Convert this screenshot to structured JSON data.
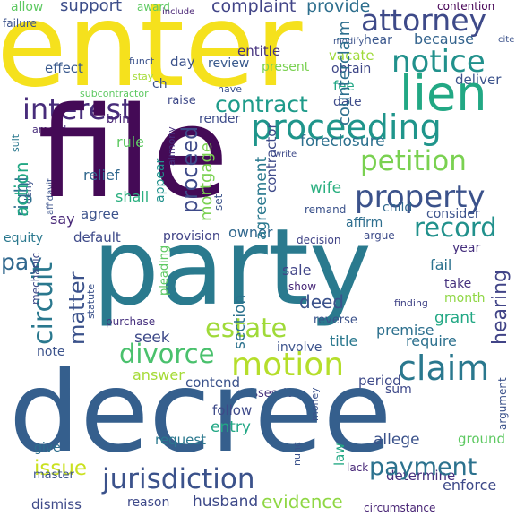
{
  "words": [
    {
      "text": "enter",
      "color": "#f5e11d",
      "vertical": false
    },
    {
      "text": "file",
      "color": "#440a56",
      "vertical": false
    },
    {
      "text": "party",
      "color": "#2a7a8e",
      "vertical": false
    },
    {
      "text": "decree",
      "color": "#355f8d",
      "vertical": false
    },
    {
      "text": "jurisdiction",
      "color": "#3b528b",
      "vertical": false
    },
    {
      "text": "proceeding",
      "color": "#1f958b",
      "vertical": false
    },
    {
      "text": "property",
      "color": "#3b528b",
      "vertical": false
    },
    {
      "text": "attorney",
      "color": "#3e4a89",
      "vertical": false
    },
    {
      "text": "notice",
      "color": "#21918c",
      "vertical": false
    },
    {
      "text": "lien",
      "color": "#22a884",
      "vertical": false
    },
    {
      "text": "interest",
      "color": "#472c7a",
      "vertical": false
    },
    {
      "text": "contract",
      "color": "#1e9b8a",
      "vertical": false
    },
    {
      "text": "petition",
      "color": "#7ad151",
      "vertical": false
    },
    {
      "text": "record",
      "color": "#21918c",
      "vertical": false
    },
    {
      "text": "motion",
      "color": "#b5de2b",
      "vertical": false
    },
    {
      "text": "claim",
      "color": "#2a788e",
      "vertical": false
    },
    {
      "text": "divorce",
      "color": "#4ac16d",
      "vertical": false
    },
    {
      "text": "estate",
      "color": "#a0da39",
      "vertical": false
    },
    {
      "text": "payment",
      "color": "#2c728e",
      "vertical": false
    },
    {
      "text": "evidence",
      "color": "#8fd744",
      "vertical": false
    },
    {
      "text": "issue",
      "color": "#cae11f",
      "vertical": false
    },
    {
      "text": "pay",
      "color": "#31688e",
      "vertical": false
    },
    {
      "text": "complaint",
      "color": "#414487",
      "vertical": false
    },
    {
      "text": "provide",
      "color": "#2e6f8e",
      "vertical": false
    },
    {
      "text": "support",
      "color": "#3d4e8a",
      "vertical": false
    },
    {
      "text": "allow",
      "color": "#5ec962",
      "vertical": false
    },
    {
      "text": "award",
      "color": "#5ec962",
      "vertical": false
    },
    {
      "text": "include",
      "color": "#482475",
      "vertical": false
    },
    {
      "text": "contention",
      "color": "#440154",
      "vertical": false
    },
    {
      "text": "because",
      "color": "#33638d",
      "vertical": false
    },
    {
      "text": "vacate",
      "color": "#9fda3a",
      "vertical": false
    },
    {
      "text": "obtain",
      "color": "#3f4788",
      "vertical": false
    },
    {
      "text": "deliver",
      "color": "#3b528b",
      "vertical": false
    },
    {
      "text": "effect",
      "color": "#38588c",
      "vertical": false
    },
    {
      "text": "day",
      "color": "#3b528b",
      "vertical": false
    },
    {
      "text": "fee",
      "color": "#22a785",
      "vertical": false
    },
    {
      "text": "date",
      "color": "#3e4c8a",
      "vertical": false
    },
    {
      "text": "entitle",
      "color": "#46337f",
      "vertical": false
    },
    {
      "text": "present",
      "color": "#7ad151",
      "vertical": false
    },
    {
      "text": "hear",
      "color": "#39568c",
      "vertical": false
    },
    {
      "text": "review",
      "color": "#38598c",
      "vertical": false
    },
    {
      "text": "render",
      "color": "#3e4c8a",
      "vertical": false
    },
    {
      "text": "bring",
      "color": "#482475",
      "vertical": false
    },
    {
      "text": "raise",
      "color": "#3e4989",
      "vertical": false
    },
    {
      "text": "subcontractor",
      "color": "#5ec962",
      "vertical": false
    },
    {
      "text": "foreclosure",
      "color": "#2d708e",
      "vertical": false
    },
    {
      "text": "relief",
      "color": "#31688e",
      "vertical": false
    },
    {
      "text": "rule",
      "color": "#5ec962",
      "vertical": false
    },
    {
      "text": "shall",
      "color": "#29af7f",
      "vertical": false
    },
    {
      "text": "child",
      "color": "#31688e",
      "vertical": false
    },
    {
      "text": "wife",
      "color": "#29af7f",
      "vertical": false
    },
    {
      "text": "remand",
      "color": "#3b528b",
      "vertical": false
    },
    {
      "text": "affirm",
      "color": "#2e6e8e",
      "vertical": false
    },
    {
      "text": "consider",
      "color": "#3b528b",
      "vertical": false
    },
    {
      "text": "argue",
      "color": "#3e4c8a",
      "vertical": false
    },
    {
      "text": "default",
      "color": "#3e4a89",
      "vertical": false
    },
    {
      "text": "provision",
      "color": "#414487",
      "vertical": false
    },
    {
      "text": "owner",
      "color": "#31688e",
      "vertical": false
    },
    {
      "text": "decision",
      "color": "#414487",
      "vertical": false
    },
    {
      "text": "agree",
      "color": "#3b528b",
      "vertical": false
    },
    {
      "text": "say",
      "color": "#482878",
      "vertical": false
    },
    {
      "text": "equity",
      "color": "#2a788e",
      "vertical": false
    },
    {
      "text": "year",
      "color": "#46307e",
      "vertical": false
    },
    {
      "text": "fail",
      "color": "#2c728e",
      "vertical": false
    },
    {
      "text": "take",
      "color": "#46327e",
      "vertical": false
    },
    {
      "text": "month",
      "color": "#8fd744",
      "vertical": false
    },
    {
      "text": "grant",
      "color": "#22a884",
      "vertical": false
    },
    {
      "text": "sale",
      "color": "#414487",
      "vertical": false
    },
    {
      "text": "show",
      "color": "#482878",
      "vertical": false
    },
    {
      "text": "deed",
      "color": "#3b528b",
      "vertical": false
    },
    {
      "text": "reverse",
      "color": "#3b528b",
      "vertical": false
    },
    {
      "text": "finding",
      "color": "#414487",
      "vertical": false
    },
    {
      "text": "premise",
      "color": "#2d708e",
      "vertical": false
    },
    {
      "text": "require",
      "color": "#2d718e",
      "vertical": false
    },
    {
      "text": "seek",
      "color": "#3e4a89",
      "vertical": false
    },
    {
      "text": "purchase",
      "color": "#46307e",
      "vertical": false
    },
    {
      "text": "involve",
      "color": "#3b528b",
      "vertical": false
    },
    {
      "text": "title",
      "color": "#2a788e",
      "vertical": false
    },
    {
      "text": "note",
      "color": "#3b528b",
      "vertical": false
    },
    {
      "text": "answer",
      "color": "#a5db36",
      "vertical": false
    },
    {
      "text": "contend",
      "color": "#3b528b",
      "vertical": false
    },
    {
      "text": "possession",
      "color": "#46307e",
      "vertical": false
    },
    {
      "text": "period",
      "color": "#3e4a89",
      "vertical": false
    },
    {
      "text": "sum",
      "color": "#3e4989",
      "vertical": false
    },
    {
      "text": "follow",
      "color": "#3e4a89",
      "vertical": false
    },
    {
      "text": "entry",
      "color": "#22a785",
      "vertical": false
    },
    {
      "text": "request",
      "color": "#2a788e",
      "vertical": false
    },
    {
      "text": "allege",
      "color": "#3b528b",
      "vertical": false
    },
    {
      "text": "ground",
      "color": "#5ec962",
      "vertical": false
    },
    {
      "text": "give",
      "color": "#2e6e8e",
      "vertical": false
    },
    {
      "text": "master",
      "color": "#3b528b",
      "vertical": false
    },
    {
      "text": "dismiss",
      "color": "#3e4a89",
      "vertical": false
    },
    {
      "text": "reason",
      "color": "#3e4989",
      "vertical": false
    },
    {
      "text": "husband",
      "color": "#3e4a89",
      "vertical": false
    },
    {
      "text": "determine",
      "color": "#46307e",
      "vertical": false
    },
    {
      "text": "enforce",
      "color": "#3e4a89",
      "vertical": false
    },
    {
      "text": "circumstance",
      "color": "#482475",
      "vertical": false
    },
    {
      "text": "lack",
      "color": "#482878",
      "vertical": false
    },
    {
      "text": "failure",
      "color": "#3b528b",
      "vertical": false
    },
    {
      "text": "funct",
      "color": "#3b528b",
      "vertical": false
    },
    {
      "text": "stay",
      "color": "#a5db36",
      "vertical": false
    },
    {
      "text": "ch",
      "color": "#3b528b",
      "vertical": false
    },
    {
      "text": "have",
      "color": "#3b528b",
      "vertical": false
    },
    {
      "text": "amend",
      "color": "#472c7a",
      "vertical": false
    },
    {
      "text": "write",
      "color": "#3e4a89",
      "vertical": false
    },
    {
      "text": "modify",
      "color": "#3b528b",
      "vertical": false
    },
    {
      "text": "cite",
      "color": "#3b528b",
      "vertical": false
    },
    {
      "text": "action",
      "color": "#22a884",
      "vertical": true
    },
    {
      "text": "right",
      "color": "#2d708e",
      "vertical": true
    },
    {
      "text": "circuit",
      "color": "#2a788e",
      "vertical": true
    },
    {
      "text": "matter",
      "color": "#3b528b",
      "vertical": true
    },
    {
      "text": "proceed",
      "color": "#3e4a89",
      "vertical": true
    },
    {
      "text": "mortgage",
      "color": "#7ad151",
      "vertical": true
    },
    {
      "text": "section",
      "color": "#2c728e",
      "vertical": true
    },
    {
      "text": "hearing",
      "color": "#414487",
      "vertical": true
    },
    {
      "text": "appear",
      "color": "#21918c",
      "vertical": true
    },
    {
      "text": "contractor",
      "color": "#3e4a89",
      "vertical": true
    },
    {
      "text": "agreement",
      "color": "#2a788e",
      "vertical": true
    },
    {
      "text": "counterclaim",
      "color": "#2e6f8e",
      "vertical": true
    },
    {
      "text": "deny",
      "color": "#3b528b",
      "vertical": true
    },
    {
      "text": "suit",
      "color": "#2a788e",
      "vertical": true
    },
    {
      "text": "law",
      "color": "#22a884",
      "vertical": true
    },
    {
      "text": "serve",
      "color": "#3e4a89",
      "vertical": true
    },
    {
      "text": "leave",
      "color": "#a0da39",
      "vertical": true
    },
    {
      "text": "set",
      "color": "#3b528b",
      "vertical": true
    },
    {
      "text": "alimony",
      "color": "#46307e",
      "vertical": true
    },
    {
      "text": "affidavit",
      "color": "#3b528b",
      "vertical": true
    },
    {
      "text": "appearance",
      "color": "#3b528b",
      "vertical": true
    },
    {
      "text": "mechanic",
      "color": "#3e4a89",
      "vertical": true
    },
    {
      "text": "statute",
      "color": "#3b528b",
      "vertical": true
    },
    {
      "text": "pleading",
      "color": "#5ec962",
      "vertical": true
    },
    {
      "text": "partition",
      "color": "#3b528b",
      "vertical": true
    },
    {
      "text": "filing",
      "color": "#3b528b",
      "vertical": true
    },
    {
      "text": "receive",
      "color": "#3b528b",
      "vertical": true
    },
    {
      "text": "money",
      "color": "#3b528b",
      "vertical": true
    },
    {
      "text": "nunc",
      "color": "#3b528b",
      "vertical": true
    },
    {
      "text": "argument",
      "color": "#3b528b",
      "vertical": true
    }
  ]
}
